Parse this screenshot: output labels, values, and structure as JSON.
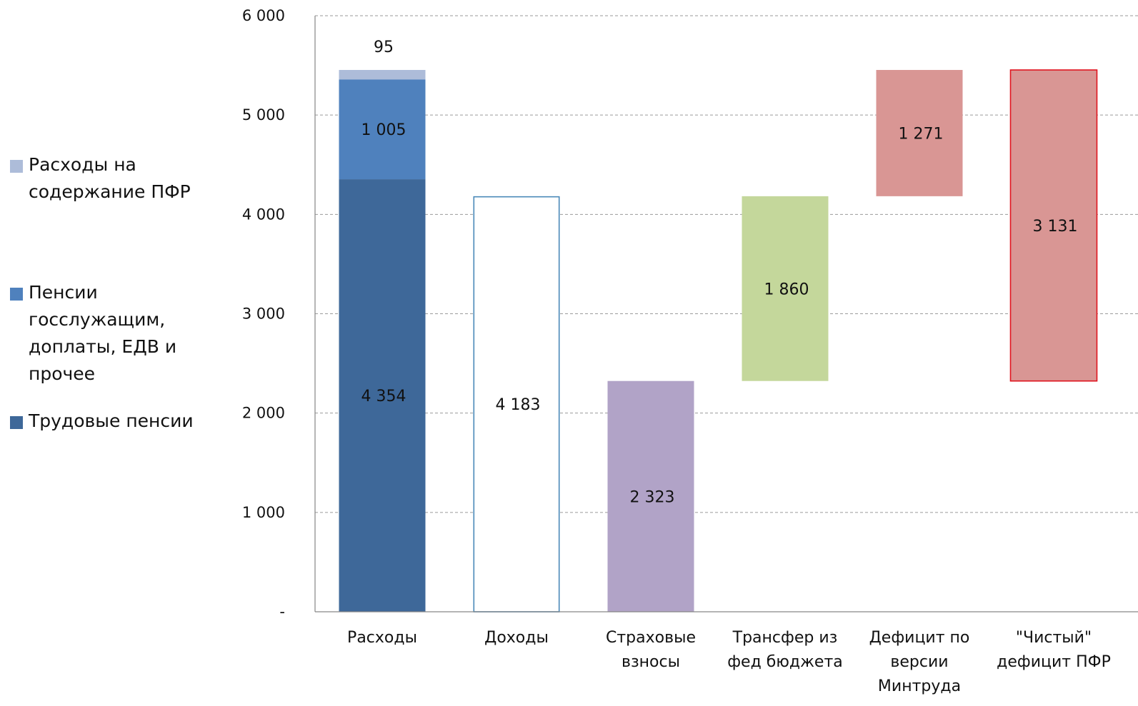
{
  "chart_data": {
    "type": "bar",
    "subtype": "waterfall",
    "ylim": [
      0,
      6000
    ],
    "yticks": [
      {
        "value": 0,
        "label": "-"
      },
      {
        "value": 1000,
        "label": "1 000"
      },
      {
        "value": 2000,
        "label": "2 000"
      },
      {
        "value": 3000,
        "label": "3 000"
      },
      {
        "value": 4000,
        "label": "4 000"
      },
      {
        "value": 5000,
        "label": "5 000"
      },
      {
        "value": 6000,
        "label": "6 000"
      }
    ],
    "grid": "horizontal-dashed",
    "legend_position": "left",
    "categories": [
      [
        "Расходы"
      ],
      [
        "Доходы"
      ],
      [
        "Страховые",
        "взносы"
      ],
      [
        "Трансфер из",
        "фед бюджета"
      ],
      [
        "Дефицит по",
        "версии",
        "Минтруда"
      ],
      [
        "\"Чистый\"",
        "дефицит ПФР"
      ]
    ],
    "legend": [
      {
        "lines": [
          "Расходы на",
          "содержание ПФР"
        ],
        "color": "#adbcd9"
      },
      {
        "lines": [
          "Пенсии",
          "госслужащим,",
          "доплаты, ЕДВ и",
          "прочее"
        ],
        "color": "#4f81bd"
      },
      {
        "lines": [
          "Трудовые пенсии"
        ],
        "color": "#3e6899"
      }
    ],
    "bars": [
      {
        "category": 0,
        "base": 0,
        "value": 4354,
        "label": "4 354",
        "color": "#3e6899",
        "style": "fill",
        "label_pos": "center"
      },
      {
        "category": 0,
        "base": 4354,
        "value": 1005,
        "label": "1 005",
        "color": "#4f81bd",
        "style": "fill",
        "label_pos": "center"
      },
      {
        "category": 0,
        "base": 5359,
        "value": 95,
        "label": "95",
        "color": "#adbcd9",
        "style": "fill",
        "label_pos": "above"
      },
      {
        "category": 1,
        "base": 0,
        "value": 4183,
        "label": "4 183",
        "color": "#4a89b8",
        "style": "outline",
        "label_pos": "center"
      },
      {
        "category": 2,
        "base": 0,
        "value": 2323,
        "label": "2 323",
        "color": "#b1a3c7",
        "style": "fill",
        "label_pos": "center"
      },
      {
        "category": 3,
        "base": 2323,
        "value": 1860,
        "label": "1 860",
        "color": "#c4d79b",
        "style": "fill",
        "label_pos": "center"
      },
      {
        "category": 4,
        "base": 4183,
        "value": 1271,
        "label": "1 271",
        "color": "#d99694",
        "style": "fill",
        "label_pos": "center"
      },
      {
        "category": 5,
        "base": 2323,
        "value": 3131,
        "label": "3 131",
        "color": "#d99694",
        "style": "fill-border",
        "border_color": "#e0141e",
        "label_pos": "center"
      }
    ]
  }
}
